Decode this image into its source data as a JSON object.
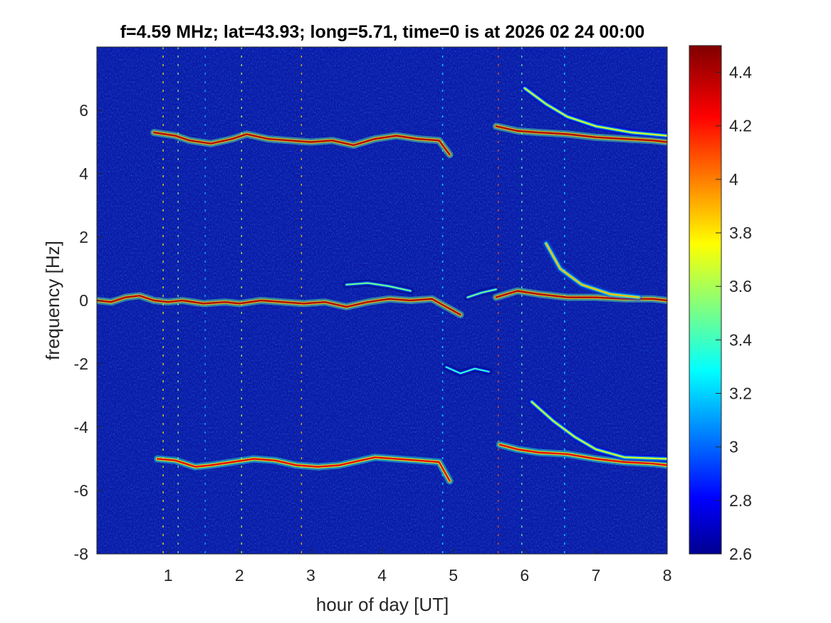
{
  "chart_data": {
    "type": "heatmap",
    "title": "f=4.59 MHz;  lat=43.93; long=5.71, time=0 is at 2026 02 24 00:00",
    "xlabel": "hour of day [UT]",
    "ylabel": "frequency [Hz]",
    "xlim": [
      0,
      8
    ],
    "ylim": [
      -8,
      8
    ],
    "x_ticks": [
      1,
      2,
      3,
      4,
      5,
      6,
      7,
      8
    ],
    "y_ticks": [
      -8,
      -6,
      -4,
      -2,
      0,
      2,
      4,
      6
    ],
    "colorbar": {
      "range": [
        2.6,
        4.5
      ],
      "ticks": [
        2.6,
        2.8,
        3,
        3.2,
        3.4,
        3.6,
        3.8,
        4,
        4.2,
        4.4
      ],
      "colormap": "jet"
    },
    "background_level": 2.75,
    "traces": [
      {
        "points": [
          [
            0.0,
            0.0
          ],
          [
            0.2,
            -0.05
          ],
          [
            0.4,
            0.1
          ],
          [
            0.6,
            0.15
          ],
          [
            0.8,
            0.0
          ],
          [
            1.0,
            -0.05
          ],
          [
            1.2,
            0.0
          ],
          [
            1.5,
            -0.1
          ],
          [
            1.8,
            -0.05
          ],
          [
            2.0,
            -0.1
          ],
          [
            2.3,
            0.0
          ],
          [
            2.6,
            -0.05
          ],
          [
            2.9,
            -0.1
          ],
          [
            3.2,
            -0.05
          ],
          [
            3.5,
            -0.2
          ],
          [
            3.8,
            -0.05
          ],
          [
            4.1,
            0.05
          ],
          [
            4.4,
            0.0
          ],
          [
            4.7,
            0.05
          ],
          [
            4.9,
            -0.2
          ],
          [
            5.1,
            -0.45
          ]
        ],
        "level": 4.4
      },
      {
        "points": [
          [
            0.8,
            5.3
          ],
          [
            1.1,
            5.2
          ],
          [
            1.3,
            5.05
          ],
          [
            1.6,
            4.95
          ],
          [
            1.9,
            5.1
          ],
          [
            2.1,
            5.25
          ],
          [
            2.4,
            5.1
          ],
          [
            2.7,
            5.05
          ],
          [
            3.0,
            5.0
          ],
          [
            3.3,
            5.05
          ],
          [
            3.6,
            4.9
          ],
          [
            3.9,
            5.1
          ],
          [
            4.2,
            5.2
          ],
          [
            4.5,
            5.1
          ],
          [
            4.8,
            5.05
          ],
          [
            4.95,
            4.6
          ]
        ],
        "level": 4.4
      },
      {
        "points": [
          [
            0.85,
            -5.0
          ],
          [
            1.1,
            -5.05
          ],
          [
            1.38,
            -5.25
          ],
          [
            1.6,
            -5.2
          ],
          [
            1.9,
            -5.1
          ],
          [
            2.2,
            -5.0
          ],
          [
            2.5,
            -5.05
          ],
          [
            2.8,
            -5.2
          ],
          [
            3.1,
            -5.25
          ],
          [
            3.4,
            -5.2
          ],
          [
            3.7,
            -5.05
          ],
          [
            3.9,
            -4.95
          ],
          [
            4.2,
            -5.0
          ],
          [
            4.5,
            -5.05
          ],
          [
            4.8,
            -5.1
          ],
          [
            4.95,
            -5.7
          ]
        ],
        "level": 4.3
      },
      {
        "points": [
          [
            5.6,
            0.1
          ],
          [
            5.9,
            0.3
          ],
          [
            6.2,
            0.2
          ],
          [
            6.6,
            0.1
          ],
          [
            7.0,
            0.1
          ],
          [
            7.4,
            0.05
          ],
          [
            7.8,
            0.05
          ],
          [
            8.0,
            0.0
          ]
        ],
        "level": 4.4
      },
      {
        "points": [
          [
            5.6,
            5.5
          ],
          [
            5.9,
            5.35
          ],
          [
            6.2,
            5.3
          ],
          [
            6.6,
            5.25
          ],
          [
            7.0,
            5.15
          ],
          [
            7.4,
            5.1
          ],
          [
            7.8,
            5.05
          ],
          [
            8.0,
            5.0
          ]
        ],
        "level": 4.4
      },
      {
        "points": [
          [
            5.65,
            -4.55
          ],
          [
            5.9,
            -4.7
          ],
          [
            6.2,
            -4.8
          ],
          [
            6.6,
            -4.85
          ],
          [
            7.0,
            -5.0
          ],
          [
            7.4,
            -5.1
          ],
          [
            7.8,
            -5.15
          ],
          [
            8.0,
            -5.2
          ]
        ],
        "level": 4.3
      },
      {
        "points": [
          [
            6.3,
            1.8
          ],
          [
            6.5,
            1.0
          ],
          [
            6.8,
            0.5
          ],
          [
            7.2,
            0.2
          ],
          [
            7.6,
            0.1
          ]
        ],
        "level": 3.9
      },
      {
        "points": [
          [
            6.0,
            6.7
          ],
          [
            6.3,
            6.2
          ],
          [
            6.6,
            5.8
          ],
          [
            7.0,
            5.5
          ],
          [
            7.5,
            5.3
          ],
          [
            8.0,
            5.2
          ]
        ],
        "level": 3.7
      },
      {
        "points": [
          [
            6.1,
            -3.2
          ],
          [
            6.4,
            -3.8
          ],
          [
            6.7,
            -4.3
          ],
          [
            7.0,
            -4.7
          ],
          [
            7.4,
            -4.95
          ],
          [
            8.0,
            -5.0
          ]
        ],
        "level": 3.7
      },
      {
        "points": [
          [
            3.5,
            0.5
          ],
          [
            3.8,
            0.55
          ],
          [
            4.1,
            0.45
          ],
          [
            4.4,
            0.3
          ]
        ],
        "level": 3.5
      },
      {
        "points": [
          [
            4.9,
            -2.1
          ],
          [
            5.1,
            -2.3
          ],
          [
            5.3,
            -2.15
          ],
          [
            5.5,
            -2.25
          ]
        ],
        "level": 3.4
      },
      {
        "points": [
          [
            5.2,
            0.1
          ],
          [
            5.4,
            0.25
          ],
          [
            5.6,
            0.35
          ]
        ],
        "level": 3.5
      }
    ],
    "vertical_streaks": [
      {
        "x": 0.93,
        "level": 3.8
      },
      {
        "x": 1.14,
        "level": 3.6
      },
      {
        "x": 1.52,
        "level": 3.2
      },
      {
        "x": 2.03,
        "level": 3.7
      },
      {
        "x": 2.87,
        "level": 3.9
      },
      {
        "x": 4.85,
        "level": 3.3
      },
      {
        "x": 5.63,
        "level": 4.1
      },
      {
        "x": 5.96,
        "level": 3.5
      },
      {
        "x": 6.56,
        "level": 3.3
      }
    ]
  }
}
